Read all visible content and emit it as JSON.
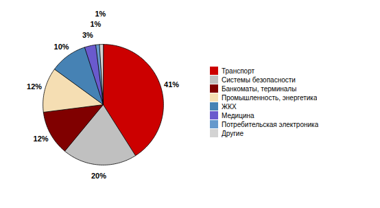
{
  "chart_data": {
    "type": "pie",
    "categories": [
      "Транспорт",
      "Системы безопасности",
      "Банкоматы, терминалы",
      "Промышленность, энергетика",
      "ЖКХ",
      "Медицина",
      "Потребительская электроника",
      "Другие"
    ],
    "values": [
      41,
      20,
      12,
      12,
      10,
      3,
      1,
      1
    ],
    "value_labels": [
      "41%",
      "20%",
      "12%",
      "12%",
      "10%",
      "3%",
      "1%",
      "1%"
    ],
    "colors": [
      "#cc0000",
      "#c0c0c0",
      "#800000",
      "#f5deb3",
      "#4682b4",
      "#6a5acd",
      "#6699cc",
      "#d3d3d3"
    ],
    "data_labels": true,
    "legend": "right"
  }
}
